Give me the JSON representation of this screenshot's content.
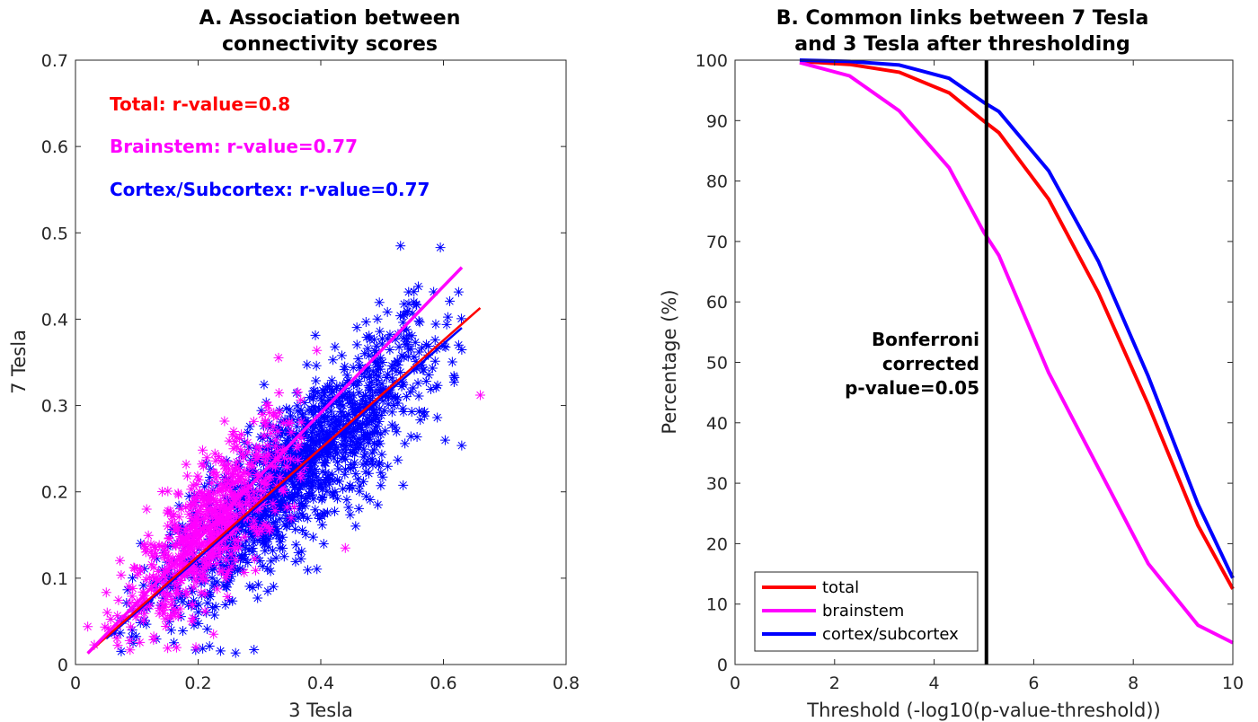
{
  "chart_data": [
    {
      "type": "scatter",
      "title_line1": "A. Association between",
      "title_line2": "connectivity scores",
      "xlabel": "3 Tesla",
      "ylabel": "7 Tesla",
      "xlim": [
        0,
        0.8
      ],
      "ylim": [
        0,
        0.7
      ],
      "xticks": [
        "0",
        "0.2",
        "0.4",
        "0.6",
        "0.8"
      ],
      "yticks": [
        "0",
        "0.1",
        "0.2",
        "0.3",
        "0.4",
        "0.5",
        "0.6",
        "0.7"
      ],
      "marker": "asterisk",
      "annotations": [
        {
          "text": "Total: r-value=0.8",
          "color": "#ff0000"
        },
        {
          "text": "Brainstem: r-value=0.77",
          "color": "#ff00ff"
        },
        {
          "text": "Cortex/Subcortex: r-value=0.77",
          "color": "#0000ff"
        }
      ],
      "series": [
        {
          "group": "cortex/subcortex",
          "color": "#0000ff",
          "center": [
            0.36,
            0.23
          ],
          "spread_x": 0.12,
          "corr": 0.77,
          "x_range": [
            0.06,
            0.63
          ],
          "count": 1400,
          "fit": [
            [
              0.05,
              0.03
            ],
            [
              0.63,
              0.39
            ]
          ]
        },
        {
          "group": "brainstem",
          "color": "#ff00ff",
          "center": [
            0.22,
            0.18
          ],
          "spread_x": 0.07,
          "corr": 0.77,
          "x_range": [
            0.02,
            0.66
          ],
          "count": 650,
          "fit": [
            [
              0.02,
              0.013
            ],
            [
              0.63,
              0.46
            ]
          ]
        },
        {
          "group": "total",
          "color": "#ff0000",
          "fit": [
            [
              0.02,
              0.013
            ],
            [
              0.66,
              0.413
            ]
          ]
        }
      ],
      "outliers": [
        {
          "x": 0.53,
          "y": 0.485,
          "color": "#0000ff"
        },
        {
          "x": 0.595,
          "y": 0.483,
          "color": "#0000ff"
        },
        {
          "x": 0.66,
          "y": 0.312,
          "color": "#ff00ff"
        },
        {
          "x": 0.02,
          "y": 0.044,
          "color": "#ff00ff"
        },
        {
          "x": 0.44,
          "y": 0.135,
          "color": "#ff00ff"
        }
      ]
    },
    {
      "type": "line",
      "title_line1": "B. Common links between 7 Tesla",
      "title_line2": "and 3 Tesla after thresholding",
      "xlabel": "Threshold (-log10(p-value-threshold))",
      "ylabel": "Percentage (%)",
      "xlim": [
        0,
        10
      ],
      "ylim": [
        0,
        100
      ],
      "xticks": [
        "0",
        "2",
        "4",
        "6",
        "8",
        "10"
      ],
      "yticks": [
        "0",
        "10",
        "20",
        "30",
        "40",
        "50",
        "60",
        "70",
        "80",
        "90",
        "100"
      ],
      "x": [
        1.3,
        2.3,
        3.3,
        4.3,
        5.0,
        5.3,
        6.3,
        7.3,
        8.3,
        9.3,
        10
      ],
      "series": [
        {
          "name": "total",
          "color": "#ff0000",
          "values": [
            99.8,
            99.3,
            98.0,
            94.6,
            89.9,
            88.0,
            77.0,
            61.5,
            43.0,
            23.0,
            12.5
          ]
        },
        {
          "name": "brainstem",
          "color": "#ff00ff",
          "values": [
            99.6,
            97.4,
            91.6,
            82.2,
            71.5,
            67.7,
            48.3,
            32.5,
            16.7,
            6.5,
            3.6
          ]
        },
        {
          "name": "cortex/subcortex",
          "color": "#0000ff",
          "values": [
            100,
            99.8,
            99.2,
            97.0,
            93.0,
            91.5,
            81.7,
            66.7,
            47.7,
            26.5,
            14.3
          ]
        }
      ],
      "vline": {
        "x": 5.05,
        "label_lines": [
          "Bonferroni",
          "corrected",
          "p-value=0.05"
        ],
        "color": "#000000"
      },
      "legend_position": "bottom-left"
    }
  ]
}
